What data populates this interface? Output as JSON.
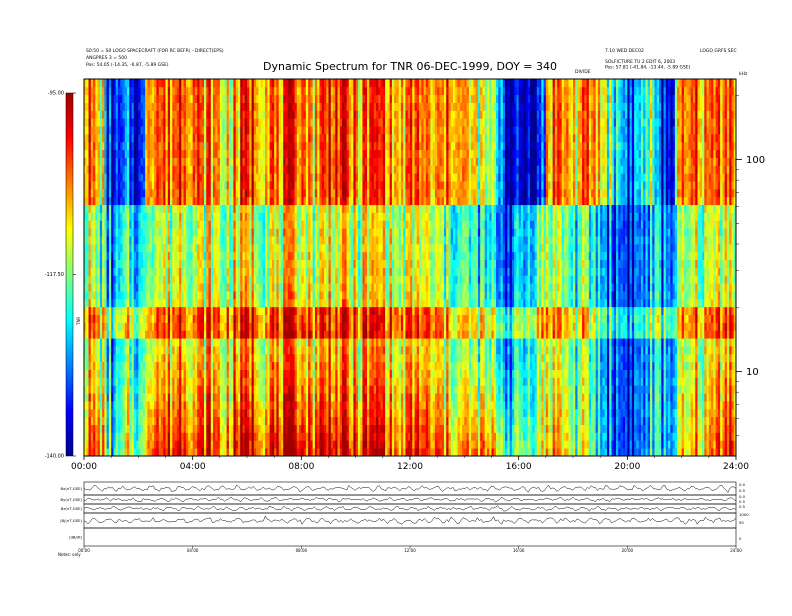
{
  "chart_data": {
    "type": "heatmap",
    "title": "Dynamic Spectrum for TNR 06-DEC-1999, DOY = 340",
    "header_left": [
      "S0:50 = S0 LOGO SPACECRAFT (FOR RC BEFR) - DIRECT(EPS)",
      "ANGPRES 3 = 500",
      "Pos: 54.05 (-14.35, -6.87, -5.89 GSE)"
    ],
    "header_right": [
      "7.10 WED DEC02",
      "LOGO GRFS SEC",
      "SOLFICTURE TU 2 EDIT 6, 2003",
      "Pos: 57.81 (-41.84, -13.44, -5.89 GSE)"
    ],
    "header_mid": "DIVIDE",
    "xlabel": "",
    "x_ticks": [
      "00:00",
      "04:00",
      "08:00",
      "12:00",
      "16:00",
      "20:00",
      "24:00"
    ],
    "x_range_hours": [
      0,
      24
    ],
    "y_scale": "log",
    "y_unit": "kHz",
    "y_ticks": [
      "100",
      "10"
    ],
    "y_tick_values": [
      100,
      10
    ],
    "y_range_khz": [
      4,
      240
    ],
    "band_boundary_khz": [
      62
    ],
    "colorbar": {
      "label": "TNR",
      "ticks": [
        "-95.00",
        "-117.50",
        "-140.00"
      ],
      "range": [
        -140,
        -95
      ],
      "colors": [
        "#00008f",
        "#0000ff",
        "#0080ff",
        "#00ffff",
        "#80ff80",
        "#ffff00",
        "#ff8000",
        "#ff0000",
        "#a00000"
      ]
    },
    "palette": {
      "navy": "#00004a",
      "blue": "#0000ff",
      "mid": "#0080ff",
      "cyan": "#00e8ff",
      "green": "#80ff80",
      "yellow": "#ffff00",
      "orange": "#ff8000",
      "red": "#ff0000",
      "dark": "#8a0000"
    },
    "intensity_profile": {
      "bins_per_hour": 4,
      "upper_band": [
        0.8,
        0.7,
        0.6,
        0.15,
        0.1,
        0.1,
        0.2,
        0.15,
        0.1,
        0.8,
        0.85,
        0.8,
        0.75,
        0.8,
        0.9,
        0.85,
        0.8,
        0.7,
        0.75,
        0.7,
        0.6,
        0.65,
        0.7,
        0.8,
        0.85,
        0.8,
        0.75,
        0.8,
        0.7,
        0.75,
        0.8,
        0.85,
        0.8,
        0.7,
        0.75,
        0.8,
        0.9,
        0.85,
        0.8,
        0.75,
        0.7,
        0.75,
        0.8,
        0.85,
        0.8,
        0.7,
        0.65,
        0.7,
        0.75,
        0.8,
        0.7,
        0.65,
        0.7,
        0.75,
        0.8,
        0.7,
        0.65,
        0.6,
        0.55,
        0.5,
        0.45,
        0.3,
        0.05,
        0.05,
        0.05,
        0.1,
        0.1,
        0.2,
        0.7,
        0.8,
        0.75,
        0.7,
        0.65,
        0.7,
        0.75,
        0.7,
        0.6,
        0.5,
        0.4,
        0.3,
        0.2,
        0.3,
        0.4,
        0.5,
        0.2,
        0.1,
        0.15,
        0.6,
        0.7,
        0.75,
        0.8,
        0.7,
        0.75,
        0.8,
        0.85,
        0.8
      ],
      "lower_band": [
        0.55,
        0.5,
        0.45,
        0.3,
        0.25,
        0.3,
        0.4,
        0.35,
        0.3,
        0.55,
        0.6,
        0.55,
        0.55,
        0.6,
        0.65,
        0.6,
        0.55,
        0.55,
        0.6,
        0.55,
        0.5,
        0.55,
        0.6,
        0.6,
        0.65,
        0.6,
        0.55,
        0.6,
        0.55,
        0.6,
        0.6,
        0.65,
        0.6,
        0.55,
        0.6,
        0.6,
        0.65,
        0.6,
        0.6,
        0.55,
        0.55,
        0.6,
        0.6,
        0.65,
        0.6,
        0.55,
        0.5,
        0.55,
        0.55,
        0.6,
        0.55,
        0.5,
        0.5,
        0.45,
        0.45,
        0.4,
        0.4,
        0.35,
        0.35,
        0.3,
        0.3,
        0.25,
        0.2,
        0.25,
        0.3,
        0.35,
        0.45,
        0.5,
        0.55,
        0.55,
        0.5,
        0.45,
        0.4,
        0.45,
        0.4,
        0.35,
        0.3,
        0.25,
        0.2,
        0.2,
        0.15,
        0.2,
        0.25,
        0.3,
        0.3,
        0.25,
        0.3,
        0.4,
        0.45,
        0.5,
        0.55,
        0.5,
        0.55,
        0.6,
        0.65,
        0.6
      ],
      "base_enhancement": [
        0.25,
        0.3,
        0.3,
        0.15,
        0.1,
        0.1,
        0.2,
        0.2,
        0.15,
        0.3,
        0.35,
        0.3,
        0.3,
        0.3,
        0.35,
        0.3,
        0.25,
        0.3,
        0.3,
        0.25,
        0.2,
        0.25,
        0.3,
        0.3,
        0.35,
        0.3,
        0.3,
        0.35,
        0.3,
        0.3,
        0.3,
        0.35,
        0.3,
        0.3,
        0.35,
        0.3,
        0.35,
        0.3,
        0.3,
        0.3,
        0.25,
        0.3,
        0.3,
        0.35,
        0.3,
        0.25,
        0.2,
        0.25,
        0.3,
        0.3,
        0.25,
        0.25,
        0.3,
        0.3,
        0.3,
        0.3,
        0.35,
        0.35,
        0.4,
        0.4,
        0.4,
        0.35,
        0.25,
        0.2,
        0.2,
        0.15,
        0.1,
        0.1,
        0.15,
        0.2,
        0.2,
        0.15,
        0.1,
        0.1,
        0.1,
        0.05,
        0.0,
        0.0,
        0.0,
        0.0,
        0.0,
        0.0,
        0.0,
        0.05,
        0.05,
        0.05,
        0.05,
        0.1,
        0.15,
        0.15,
        0.2,
        0.15,
        0.2,
        0.25,
        0.3,
        0.3
      ]
    },
    "bottom_panels": {
      "labels": [
        "Bx(nT,GSE)",
        "By(nT,GSE)",
        "Bz(nT,GSE)",
        "|B|(nT,GSE)",
        "|dB/dt|"
      ],
      "right_ticks": [
        "0.0",
        "0.5",
        "0.0",
        "0.5",
        "0.5",
        "1000",
        "50",
        "0"
      ],
      "x_ticks": [
        "00:00",
        "04:00",
        "08:00",
        "12:00",
        "16:00",
        "20:00",
        "24:00"
      ],
      "bottom_left": "Notes:  only"
    }
  }
}
